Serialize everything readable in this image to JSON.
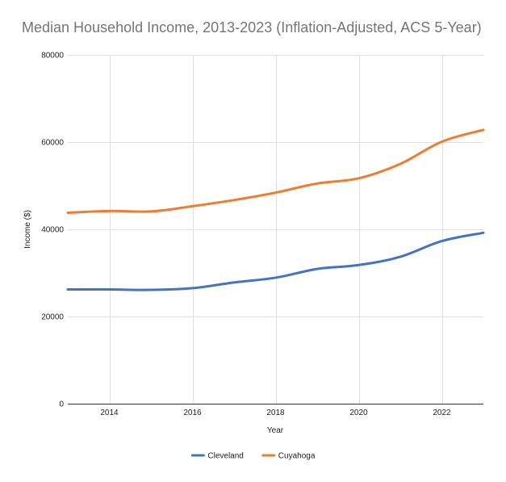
{
  "chart_data": {
    "type": "line",
    "title": "Median Household Income, 2013-2023 (Inflation-Adjusted, ACS 5-Year)",
    "xlabel": "Year",
    "ylabel": "Income ($)",
    "x": [
      2013,
      2014,
      2015,
      2016,
      2017,
      2018,
      2019,
      2020,
      2021,
      2022,
      2023
    ],
    "x_ticks": [
      2014,
      2016,
      2018,
      2020,
      2022
    ],
    "xlim": [
      2013,
      2023
    ],
    "ylim": [
      0,
      80000
    ],
    "y_ticks": [
      0,
      20000,
      40000,
      60000,
      80000
    ],
    "grid": true,
    "legend_position": "bottom",
    "series": [
      {
        "name": "Cleveland",
        "color": "#4472c4",
        "values": [
          26200,
          26200,
          26100,
          26500,
          27800,
          28900,
          30900,
          31800,
          33700,
          37300,
          39200
        ]
      },
      {
        "name": "Cuyahoga",
        "color": "#ed7d31",
        "values": [
          43800,
          44200,
          44100,
          45300,
          46700,
          48400,
          50500,
          51700,
          55000,
          60100,
          62800
        ]
      }
    ]
  }
}
